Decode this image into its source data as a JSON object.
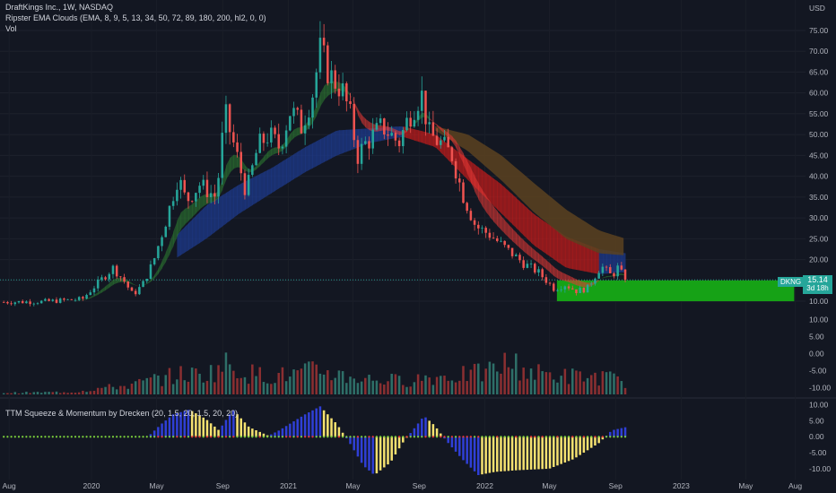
{
  "header": {
    "title": "DraftKings Inc., 1W, NASDAQ",
    "ema_indicator": "Ripster EMA Clouds (EMA, 8, 9, 5, 13, 34, 50, 72, 89, 180, 200, hl2, 0, 0)",
    "volume_label": "Vol",
    "ttm_indicator": "TTM Squeeze & Momentum by Drecken (20, 1.5, 20, 1.5, 20, 20)"
  },
  "price_badge": {
    "symbol": "DKNG",
    "value": "15.14",
    "countdown": "3d 18h"
  },
  "colors": {
    "bg": "#131722",
    "up": "#26a69a",
    "down": "#ef5350",
    "vol_up": "#2e6f68",
    "vol_down": "#8a2f31",
    "zone": "#16a216",
    "mom_yellow": "#f5e170",
    "mom_blue": "#2f3fd6",
    "dot_green": "#7cd13c",
    "dot_red": "#e53935"
  },
  "chart_data": {
    "type": "candlestick",
    "symbol": "DKNG",
    "timeframe": "1W",
    "currency": "USD",
    "price_axis": {
      "unit": "USD",
      "range": [
        7,
        78
      ],
      "ticks": [
        10,
        15,
        20,
        25,
        30,
        35,
        40,
        45,
        50,
        55,
        60,
        65,
        70,
        75
      ],
      "tick_labels": [
        "10.00",
        "15.00",
        "20.00",
        "25.00",
        "30.00",
        "35.00",
        "40.00",
        "45.00",
        "50.00",
        "55.00",
        "60.00",
        "65.00",
        "70.00",
        "75.00"
      ]
    },
    "x_axis": {
      "start": "2019-07-15",
      "end": "2023-08-20",
      "tick_labels": [
        {
          "date": "2019-08-01",
          "label": "Aug"
        },
        {
          "date": "2020-01-01",
          "label": "2020"
        },
        {
          "date": "2020-05-01",
          "label": "May"
        },
        {
          "date": "2020-09-01",
          "label": "Sep"
        },
        {
          "date": "2021-01-01",
          "label": "2021"
        },
        {
          "date": "2021-05-01",
          "label": "May"
        },
        {
          "date": "2021-09-01",
          "label": "Sep"
        },
        {
          "date": "2022-01-01",
          "label": "2022"
        },
        {
          "date": "2022-05-01",
          "label": "May"
        },
        {
          "date": "2022-09-01",
          "label": "Sep"
        },
        {
          "date": "2023-01-01",
          "label": "2023"
        },
        {
          "date": "2023-05-01",
          "label": "May"
        },
        {
          "date": "2023-08-01",
          "label": "Aug"
        }
      ]
    },
    "price_path": [
      [
        "2019-07-22",
        9.8
      ],
      [
        "2019-10-01",
        9.9
      ],
      [
        "2019-12-15",
        10.5
      ],
      [
        "2020-01-10",
        14.0
      ],
      [
        "2020-02-10",
        18.0
      ],
      [
        "2020-03-01",
        15.0
      ],
      [
        "2020-03-18",
        11.5
      ],
      [
        "2020-04-05",
        14.0
      ],
      [
        "2020-04-25",
        19.5
      ],
      [
        "2020-05-20",
        30.0
      ],
      [
        "2020-06-10",
        40.0
      ],
      [
        "2020-06-25",
        34.0
      ],
      [
        "2020-07-20",
        38.0
      ],
      [
        "2020-08-20",
        35.0
      ],
      [
        "2020-09-05",
        55.0
      ],
      [
        "2020-09-25",
        46.0
      ],
      [
        "2020-10-15",
        36.0
      ],
      [
        "2020-11-05",
        47.0
      ],
      [
        "2020-11-25",
        50.0
      ],
      [
        "2020-12-15",
        47.0
      ],
      [
        "2021-01-05",
        56.0
      ],
      [
        "2021-01-25",
        52.0
      ],
      [
        "2021-02-15",
        60.0
      ],
      [
        "2021-03-01",
        70.0
      ],
      [
        "2021-03-20",
        64.0
      ],
      [
        "2021-04-10",
        61.0
      ],
      [
        "2021-04-25",
        55.0
      ],
      [
        "2021-05-10",
        45.0
      ],
      [
        "2021-05-25",
        48.0
      ],
      [
        "2021-06-25",
        52.0
      ],
      [
        "2021-07-25",
        48.0
      ],
      [
        "2021-08-15",
        55.0
      ],
      [
        "2021-09-05",
        60.0
      ],
      [
        "2021-09-20",
        50.0
      ],
      [
        "2021-10-10",
        48.0
      ],
      [
        "2021-11-01",
        45.0
      ],
      [
        "2021-11-20",
        36.0
      ],
      [
        "2021-12-15",
        28.0
      ],
      [
        "2022-01-10",
        26.0
      ],
      [
        "2022-02-15",
        22.0
      ],
      [
        "2022-03-15",
        19.0
      ],
      [
        "2022-04-10",
        17.0
      ],
      [
        "2022-05-10",
        13.0
      ],
      [
        "2022-05-30",
        14.0
      ],
      [
        "2022-06-20",
        12.5
      ],
      [
        "2022-07-10",
        13.0
      ],
      [
        "2022-08-05",
        18.5
      ],
      [
        "2022-08-25",
        16.0
      ],
      [
        "2022-09-05",
        18.0
      ],
      [
        "2022-09-20",
        15.14
      ]
    ],
    "candle_span": [
      "2019-07-22",
      "2022-09-19"
    ],
    "ema_clouds": [
      {
        "name": "fast",
        "color_up": "#2e7d32",
        "color_down": "#e53935",
        "start": "2019-12-01",
        "end": "2022-09-19",
        "source": "price_path"
      },
      {
        "name": "34/50",
        "color_up": "#1e3a8a",
        "color_down": "#b71c1c",
        "path": [
          [
            "2020-06-08",
            20.5,
            26.0
          ],
          [
            "2020-08-01",
            25.0,
            33.0
          ],
          [
            "2020-10-01",
            31.0,
            38.0
          ],
          [
            "2020-12-01",
            36.0,
            42.0
          ],
          [
            "2021-02-01",
            41.0,
            47.0
          ],
          [
            "2021-04-01",
            45.0,
            51.0
          ],
          [
            "2021-06-01",
            48.0,
            51.5
          ],
          [
            "2021-08-01",
            49.5,
            52.0
          ],
          [
            "2021-10-01",
            47.0,
            50.0
          ],
          [
            "2021-12-01",
            39.0,
            44.0
          ],
          [
            "2022-02-01",
            31.0,
            38.0
          ],
          [
            "2022-04-01",
            23.5,
            31.0
          ],
          [
            "2022-06-01",
            18.0,
            25.5
          ],
          [
            "2022-08-01",
            16.5,
            22.5
          ],
          [
            "2022-09-20",
            17.0,
            21.5
          ]
        ]
      },
      {
        "name": "72/89",
        "color": "#5c4220",
        "path": [
          [
            "2021-10-01",
            51.0,
            52.0
          ],
          [
            "2021-12-01",
            46.0,
            50.0
          ],
          [
            "2022-02-01",
            39.0,
            45.0
          ],
          [
            "2022-04-01",
            31.5,
            38.5
          ],
          [
            "2022-06-01",
            25.0,
            32.0
          ],
          [
            "2022-08-01",
            21.5,
            27.0
          ],
          [
            "2022-09-20",
            21.0,
            25.0
          ]
        ]
      }
    ],
    "support_zone": {
      "from": "2022-05-15",
      "to": "2023-07-30",
      "low": 10.0,
      "high": 15.0,
      "color": "#16a216"
    },
    "last_price": 15.14,
    "volume": {
      "range": [
        "2019-07-22",
        "2022-09-19"
      ],
      "path": [
        [
          "2019-07-22",
          0.5
        ],
        [
          "2019-12-01",
          0.8
        ],
        [
          "2020-01-15",
          2.0
        ],
        [
          "2020-03-15",
          3.0
        ],
        [
          "2020-05-01",
          5.0
        ],
        [
          "2020-06-15",
          6.5
        ],
        [
          "2020-08-01",
          6.5
        ],
        [
          "2020-09-10",
          10.0
        ],
        [
          "2020-10-15",
          7.0
        ],
        [
          "2020-12-01",
          6.0
        ],
        [
          "2021-01-15",
          6.5
        ],
        [
          "2021-03-01",
          8.0
        ],
        [
          "2021-04-15",
          6.0
        ],
        [
          "2021-06-01",
          5.0
        ],
        [
          "2021-08-01",
          4.5
        ],
        [
          "2021-09-10",
          5.5
        ],
        [
          "2021-11-01",
          6.0
        ],
        [
          "2022-01-01",
          7.0
        ],
        [
          "2022-02-15",
          10.5
        ],
        [
          "2022-04-01",
          7.0
        ],
        [
          "2022-06-01",
          6.0
        ],
        [
          "2022-08-15",
          5.5
        ],
        [
          "2022-09-20",
          4.0
        ]
      ]
    },
    "osc_axis": {
      "ticks": [
        -10,
        -5,
        0,
        5,
        10
      ],
      "tick_labels": [
        "-10.00",
        "-5.00",
        "0.00",
        "5.00",
        "10.00"
      ],
      "range": [
        -12,
        11
      ]
    },
    "vol_axis": {
      "ticks": [
        -10,
        -5,
        0,
        5,
        10
      ],
      "tick_labels": [
        "-10.00",
        "-5.00",
        "0.00",
        "5.00",
        "10.00"
      ],
      "range": [
        -12,
        13
      ]
    },
    "momentum": {
      "path": [
        [
          "2019-07-22",
          0.0
        ],
        [
          "2020-04-15",
          0.0
        ],
        [
          "2020-05-10",
          4.0
        ],
        [
          "2020-06-01",
          7.0
        ],
        [
          "2020-07-01",
          8.5
        ],
        [
          "2020-08-01",
          5.5
        ],
        [
          "2020-08-25",
          2.0
        ],
        [
          "2020-09-20",
          8.5
        ],
        [
          "2020-10-20",
          3.0
        ],
        [
          "2020-11-25",
          0.3
        ],
        [
          "2020-12-15",
          2.0
        ],
        [
          "2021-02-01",
          7.0
        ],
        [
          "2021-03-01",
          9.5
        ],
        [
          "2021-04-01",
          4.0
        ],
        [
          "2021-04-25",
          -2.0
        ],
        [
          "2021-05-20",
          -9.0
        ],
        [
          "2021-06-10",
          -12.0
        ],
        [
          "2021-07-10",
          -8.0
        ],
        [
          "2021-08-01",
          -2.0
        ],
        [
          "2021-08-20",
          2.0
        ],
        [
          "2021-09-10",
          6.5
        ],
        [
          "2021-09-30",
          3.5
        ],
        [
          "2021-10-20",
          -1.0
        ],
        [
          "2021-11-20",
          -7.0
        ],
        [
          "2021-12-20",
          -12.0
        ],
        [
          "2022-01-20",
          -11.0
        ],
        [
          "2022-03-01",
          -10.5
        ],
        [
          "2022-05-01",
          -10.0
        ],
        [
          "2022-06-15",
          -7.0
        ],
        [
          "2022-08-01",
          -2.0
        ],
        [
          "2022-08-25",
          2.0
        ],
        [
          "2022-09-20",
          3.0
        ]
      ]
    }
  }
}
